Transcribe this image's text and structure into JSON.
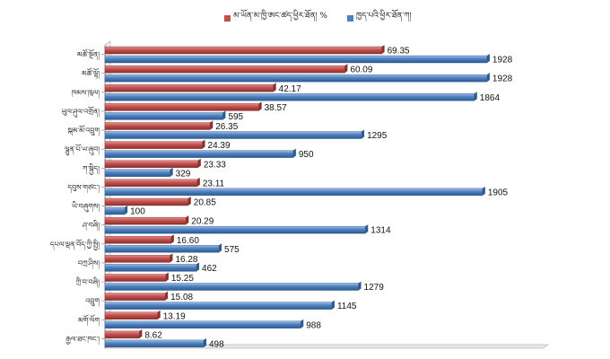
{
  "chart_data": {
    "type": "bar",
    "orientation": "horizontal",
    "categories": [
      "མཚོ་སྔོན།",
      "མཚོ་ལྷོ།",
      "ཁམས་ཁུལ།",
      "ཡུལ་ཤུལ་འགྲོན།",
      "སྐམ་མོ་འབྲུག",
      "ལྷུན་པོ་ཡ་ཞུབ།",
      "ཀ་སྐྱིད།",
      "དབུས་གཙང་།",
      "ཡི་བཞུགས།",
      "ཤ་བཞི།",
      "དཔལ་ལྡན་བོད་ཀྱི་སྤྱི།",
      "བཀྲ་ཤིས།",
      "ཀྲི་བ་བཞི།",
      "འབྲུག",
      "མགོ་ལོག",
      "རྒྱལ་ཐང་ཁང་།"
    ],
    "series": [
      {
        "name": "མ་ཡོན་མ་ཁྱི་ཨང་ཚད་ཕྱིར་ཐོན། %",
        "color": "#c0504d",
        "values": [
          69.35,
          60.09,
          42.17,
          38.57,
          26.35,
          24.39,
          23.33,
          23.11,
          20.85,
          20.29,
          16.6,
          16.28,
          15.25,
          15.08,
          13.19,
          8.62
        ],
        "labels": [
          "69.35",
          "60.09",
          "42.17",
          "38.57",
          "26.35",
          "24.39",
          "23.33",
          "23.11",
          "20.85",
          "20.29",
          "16.60",
          "16.28",
          "15.25",
          "15.08",
          "13.19",
          "8.62"
        ]
      },
      {
        "name": "ཁྱད་པའི་ཕྱིར་ཐོན་ཀ།",
        "color": "#4f81bd",
        "values": [
          1928,
          1928,
          1864,
          595,
          1295,
          950,
          329,
          1905,
          100,
          1314,
          575,
          462,
          1279,
          1145,
          988,
          498
        ],
        "labels": [
          "1928",
          "1928",
          "1864",
          "595",
          "1295",
          "950",
          "329",
          "1905",
          "100",
          "1314",
          "575",
          "462",
          "1279",
          "1145",
          "988",
          "498"
        ]
      }
    ],
    "red_scale_max": 100,
    "blue_scale_max": 2200,
    "legend_position": "top",
    "grid": false
  }
}
